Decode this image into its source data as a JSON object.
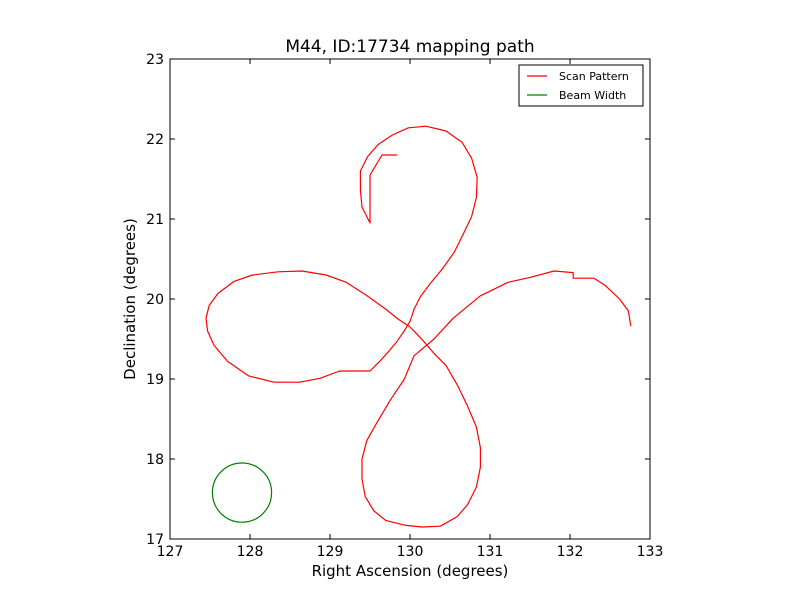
{
  "chart_data": {
    "type": "line",
    "title": "M44, ID:17734 mapping path",
    "xlabel": "Right Ascension (degrees)",
    "ylabel": "Declination (degrees)",
    "xlim": [
      127,
      133
    ],
    "ylim": [
      17,
      23
    ],
    "xticks": [
      127,
      128,
      129,
      130,
      131,
      132,
      133
    ],
    "yticks": [
      17,
      18,
      19,
      20,
      21,
      22,
      23
    ],
    "grid": false,
    "legend": {
      "placement": "top-right",
      "entries": [
        {
          "label": "Scan Pattern",
          "color": "#ff0000"
        },
        {
          "label": "Beam Width",
          "color": "#008000"
        }
      ]
    },
    "series": [
      {
        "name": "Scan Pattern",
        "color": "#ff0000",
        "x": [
          130.0,
          130.06,
          130.18,
          130.3,
          130.45,
          130.6,
          130.72,
          130.83,
          130.88,
          130.88,
          130.83,
          130.72,
          130.59,
          130.38,
          130.15,
          129.95,
          129.7,
          129.55,
          129.44,
          129.4,
          129.4,
          129.46,
          129.59,
          129.75,
          129.93,
          130.05,
          130.3,
          130.54,
          130.88,
          131.23,
          131.5,
          131.8,
          132.04,
          132.04,
          132.3,
          132.44,
          132.62,
          132.73,
          132.76
        ],
        "y": [
          19.65,
          19.59,
          19.46,
          19.32,
          19.17,
          18.91,
          18.66,
          18.4,
          18.14,
          17.9,
          17.65,
          17.43,
          17.28,
          17.16,
          17.15,
          17.17,
          17.23,
          17.35,
          17.53,
          17.75,
          18.0,
          18.23,
          18.46,
          18.73,
          19.0,
          19.29,
          19.5,
          19.76,
          20.04,
          20.21,
          20.27,
          20.35,
          20.33,
          20.26,
          20.26,
          20.17,
          20.0,
          19.85,
          19.66
        ]
      },
      {
        "name": "Scan Pattern",
        "color": "#ff0000",
        "x": [
          130.0,
          129.85,
          129.7,
          129.45,
          129.2,
          128.95,
          128.65,
          128.35,
          128.03,
          127.8,
          127.6,
          127.49,
          127.45,
          127.47,
          127.55,
          127.72,
          127.98,
          128.3,
          128.62,
          128.88,
          129.12,
          129.5,
          129.62,
          129.73,
          129.83,
          129.92,
          130.0,
          130.05,
          130.13,
          130.25,
          130.4,
          130.55,
          130.66,
          130.77,
          130.83,
          130.84,
          130.77,
          130.65,
          130.45,
          130.2,
          129.98,
          129.78,
          129.6,
          129.47,
          129.38,
          129.38,
          129.4,
          129.5,
          129.5,
          129.65,
          129.84
        ],
        "y": [
          19.65,
          19.75,
          19.87,
          20.05,
          20.21,
          20.3,
          20.35,
          20.34,
          20.3,
          20.22,
          20.07,
          19.92,
          19.76,
          19.6,
          19.42,
          19.22,
          19.04,
          18.96,
          18.96,
          19.01,
          19.1,
          19.1,
          19.22,
          19.34,
          19.46,
          19.59,
          19.72,
          19.87,
          20.03,
          20.19,
          20.37,
          20.58,
          20.8,
          21.03,
          21.27,
          21.52,
          21.76,
          21.96,
          22.1,
          22.16,
          22.14,
          22.05,
          21.93,
          21.78,
          21.6,
          21.36,
          21.15,
          20.95,
          21.55,
          21.8,
          21.8
        ]
      }
    ],
    "shapes": [
      {
        "name": "Beam Width",
        "type": "circle",
        "color": "#008000",
        "center": [
          127.9,
          17.58
        ],
        "radius_deg": 0.37
      }
    ]
  }
}
